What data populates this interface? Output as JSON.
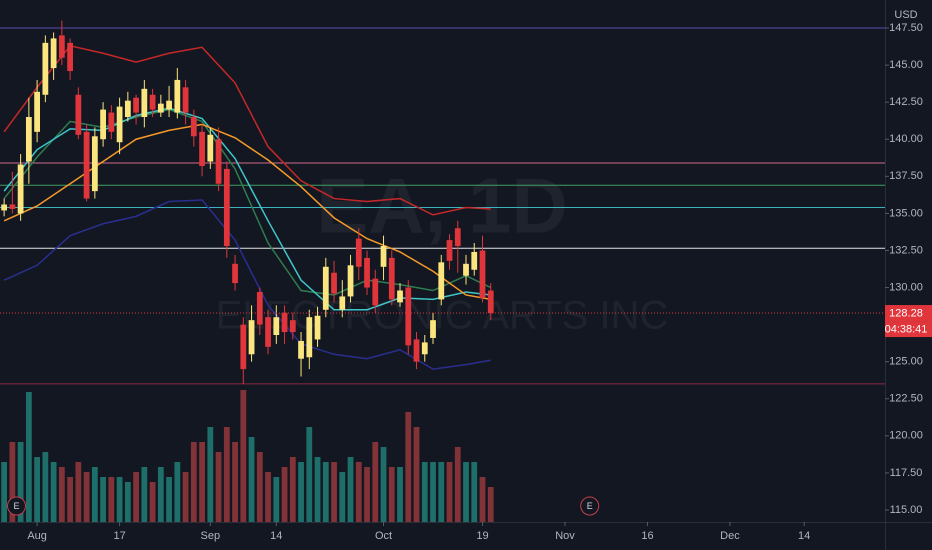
{
  "chart_data": {
    "type": "candlestick",
    "watermark": "EA, 1D",
    "watermark_subtitle": "ELECTRONIC ARTS INC",
    "currency": "USD",
    "countdown": "04:38:41",
    "up_color": "#fbe57f",
    "down_color": "#e0353b",
    "volume_up_color": "#1e6f69",
    "volume_down_color": "#823337",
    "xlim": [
      -0.5,
      106.8
    ],
    "xticks": [
      {
        "value": 4,
        "label": "Aug"
      },
      {
        "value": 14,
        "label": "17"
      },
      {
        "value": 25,
        "label": "Sep"
      },
      {
        "value": 33,
        "label": "14"
      },
      {
        "value": 46,
        "label": "Oct"
      },
      {
        "value": 58,
        "label": "19"
      },
      {
        "value": 68,
        "label": "Nov"
      },
      {
        "value": 78,
        "label": "16"
      },
      {
        "value": 88,
        "label": "Dec"
      },
      {
        "value": 97,
        "label": "14"
      }
    ],
    "ylim": [
      114.19,
      149.39
    ],
    "yticks": [
      {
        "value": 115,
        "label": "115.00"
      },
      {
        "value": 117.5,
        "label": "117.50"
      },
      {
        "value": 120,
        "label": "120.00"
      },
      {
        "value": 122.5,
        "label": "122.50"
      },
      {
        "value": 125,
        "label": "125.00"
      },
      {
        "value": 127.5,
        "label": "127.50"
      },
      {
        "value": 130,
        "label": "130.00"
      },
      {
        "value": 132.5,
        "label": "132.50"
      },
      {
        "value": 135,
        "label": "135.00"
      },
      {
        "value": 137.5,
        "label": "137.50"
      },
      {
        "value": 140,
        "label": "140.00"
      },
      {
        "value": 142.5,
        "label": "142.50"
      },
      {
        "value": 145,
        "label": "145.00"
      },
      {
        "value": 147.5,
        "label": "147.50"
      }
    ],
    "volume_lim": [
      0,
      7
    ],
    "x": [
      0,
      1,
      2,
      3,
      4,
      5,
      6,
      7,
      8,
      9,
      10,
      11,
      12,
      13,
      14,
      15,
      16,
      17,
      18,
      19,
      20,
      21,
      22,
      23,
      24,
      25,
      26,
      27,
      28,
      29,
      30,
      31,
      32,
      33,
      34,
      35,
      36,
      37,
      38,
      39,
      40,
      41,
      42,
      43,
      44,
      45,
      46,
      47,
      48,
      49,
      50,
      51,
      52,
      53,
      54,
      55,
      56,
      57,
      58,
      59
    ],
    "open": [
      135.2,
      135.6,
      135,
      138.5,
      140.5,
      143,
      144.8,
      147,
      146.5,
      143,
      140.5,
      136.5,
      140,
      141.8,
      139.8,
      141.5,
      142.8,
      141.5,
      143,
      141.8,
      142,
      141.8,
      143.5,
      141.5,
      140.5,
      138.5,
      140,
      138,
      131.6,
      127.5,
      125.5,
      129.7,
      128,
      126.8,
      128.3,
      127.8,
      125.2,
      125.3,
      126.5,
      128.5,
      131,
      128.5,
      129.4,
      133.3,
      132,
      130.6,
      131.4,
      132,
      129,
      130,
      126.5,
      125.5,
      126.6,
      129.2,
      133.2,
      134,
      130.8,
      131.2,
      132.5,
      129.8
    ],
    "high": [
      136,
      137.8,
      139,
      142.8,
      144,
      147,
      147.2,
      148,
      146.8,
      143.5,
      141,
      140.8,
      142.5,
      142.3,
      142.8,
      143.2,
      143,
      144,
      143.4,
      143,
      143.6,
      144.8,
      144,
      142,
      141,
      140.8,
      140.8,
      138.5,
      132.2,
      128,
      128.8,
      130,
      128.5,
      128.8,
      128.8,
      128.3,
      127,
      128.5,
      128.7,
      132,
      131.8,
      130.5,
      132.2,
      134,
      132.5,
      131.2,
      133.5,
      132.5,
      130.3,
      130.5,
      127,
      126.8,
      128.3,
      132.2,
      133.6,
      134.5,
      132.2,
      133,
      133.5,
      130.3
    ],
    "low": [
      134.8,
      135,
      134.5,
      137,
      139.8,
      142.5,
      144,
      145,
      144,
      140,
      135.8,
      136,
      139.5,
      140,
      139,
      141.2,
      141,
      140.8,
      141.5,
      141.5,
      141.5,
      141.4,
      141,
      139.5,
      137.5,
      138,
      136.5,
      132,
      129.8,
      123.5,
      125,
      126.8,
      125.5,
      126.2,
      126.2,
      126.5,
      124,
      124.5,
      126,
      128,
      129,
      128,
      129,
      130.5,
      129.5,
      128.3,
      130.5,
      128.8,
      128.7,
      125.5,
      124.5,
      125,
      126.2,
      128.8,
      131.2,
      131,
      130.2,
      130.8,
      129,
      127.8
    ],
    "close": [
      135.6,
      135.3,
      138.3,
      141.5,
      143.2,
      146.5,
      146.8,
      145.5,
      144.6,
      140.3,
      136,
      140.2,
      142,
      140.5,
      142.2,
      142.6,
      141.8,
      143.4,
      142,
      142.4,
      142.6,
      144,
      141.8,
      140.2,
      138.2,
      140.3,
      137,
      132.8,
      130.3,
      124.5,
      127.8,
      127.5,
      126,
      128,
      127,
      127,
      126.4,
      128,
      128.1,
      131.4,
      129.6,
      129.4,
      131.5,
      131.4,
      130,
      128.8,
      132.8,
      129.2,
      129.8,
      126.1,
      125,
      126.3,
      127.8,
      131.7,
      131.8,
      132.8,
      131.6,
      132.4,
      129.3,
      128.28
    ],
    "volume": [
      3,
      4,
      4,
      6.5,
      3.25,
      3.5,
      3,
      2.75,
      2.25,
      3,
      2.5,
      2.75,
      2.25,
      2.25,
      2.25,
      2,
      2.5,
      2.75,
      2,
      2.75,
      2.25,
      3,
      2.5,
      4,
      4,
      4.75,
      3.5,
      4.75,
      4,
      6.6,
      4.25,
      3.5,
      2.5,
      2.25,
      2.75,
      3.25,
      3,
      4.75,
      3.25,
      3,
      3,
      2.5,
      3.25,
      3,
      2.75,
      4,
      3.75,
      2.75,
      2.75,
      5.5,
      4.75,
      3,
      3,
      3,
      3,
      3.75,
      3,
      3,
      2.25,
      1.75
    ],
    "indicators": [
      {
        "color": "#c62828",
        "x": [
          0,
          4,
          8,
          12,
          16,
          20,
          24,
          28,
          32,
          36,
          40,
          44,
          48,
          52,
          56,
          59
        ],
        "values": [
          140.5,
          143.5,
          146.3,
          145.8,
          145.2,
          145.8,
          146.2,
          143.8,
          139.5,
          137.2,
          136,
          135.8,
          136,
          134.9,
          135.4,
          135.3
        ]
      },
      {
        "color": "#2a2e8f",
        "x": [
          0,
          4,
          8,
          12,
          16,
          20,
          24,
          28,
          32,
          36,
          40,
          44,
          48,
          52,
          56,
          59
        ],
        "values": [
          130.5,
          131.5,
          133.5,
          134.3,
          134.8,
          135.8,
          135.9,
          133.2,
          128.8,
          126.2,
          125.5,
          125.2,
          125.8,
          124.5,
          124.8,
          125.1
        ]
      },
      {
        "color": "#2e7d4f",
        "x": [
          0,
          4,
          8,
          12,
          16,
          20,
          24,
          28,
          32,
          36,
          40,
          44,
          48,
          52,
          56,
          59
        ],
        "values": [
          136,
          138.8,
          141.2,
          140.8,
          141.5,
          142,
          141.2,
          138,
          133,
          129.8,
          129.5,
          130.5,
          130.2,
          129.8,
          130.8,
          130
        ]
      },
      {
        "color": "#3ec6c9",
        "x": [
          0,
          4,
          8,
          12,
          16,
          20,
          24,
          28,
          32,
          36,
          40,
          44,
          48,
          52,
          56,
          59
        ],
        "values": [
          136.5,
          139.3,
          140.7,
          140.6,
          141.6,
          142.1,
          141.4,
          138.7,
          134.5,
          130.5,
          128.5,
          128.5,
          129.3,
          129.2,
          129.7,
          129.5
        ]
      },
      {
        "color": "#f59a2a",
        "x": [
          0,
          4,
          8,
          12,
          16,
          20,
          24,
          28,
          32,
          36,
          40,
          44,
          48,
          52,
          56,
          59
        ],
        "values": [
          134.5,
          135.5,
          137,
          138.5,
          140,
          140.6,
          141,
          140.1,
          138.6,
          136.8,
          134.7,
          133.3,
          132.4,
          131.1,
          129.5,
          129.2
        ]
      }
    ],
    "levels": [
      {
        "value": 147.5,
        "color": "#5b4bb3"
      },
      {
        "value": 138.4,
        "color": "#d06b8e"
      },
      {
        "value": 136.9,
        "color": "#3f9f5f"
      },
      {
        "value": 135.4,
        "color": "#3bb3bd"
      },
      {
        "value": 132.65,
        "color": "#e6e6e6"
      },
      {
        "value": 123.5,
        "color": "#8e2a45"
      }
    ],
    "events": [
      {
        "x": 1.5,
        "label": "E"
      },
      {
        "x": 71,
        "label": "E"
      }
    ]
  }
}
